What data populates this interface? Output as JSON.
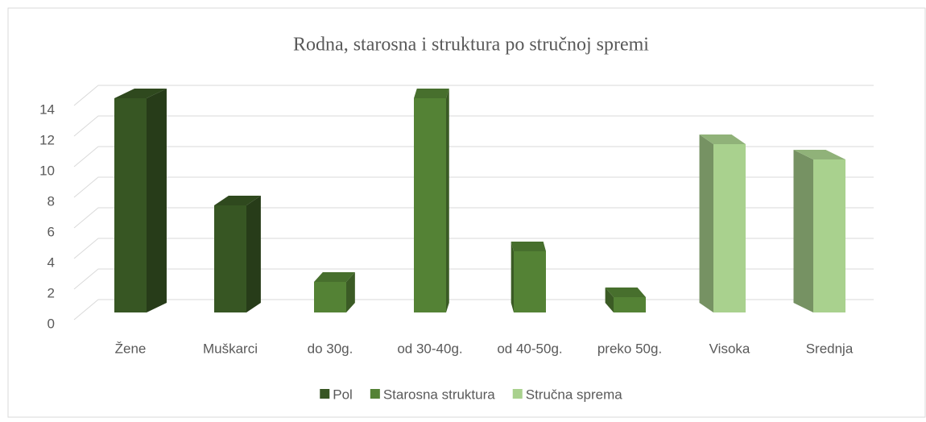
{
  "chart_data": {
    "type": "bar3d",
    "title": "Rodna, starosna i struktura po stručnoj spremi",
    "categories": [
      "Žene",
      "Muškarci",
      "do 30g.",
      "od 30-40g.",
      "od 40-50g.",
      "preko 50g.",
      "Visoka",
      "Srednja"
    ],
    "series": [
      {
        "name": "Pol",
        "color": "#375623",
        "values": [
          14,
          7,
          null,
          null,
          null,
          null,
          null,
          null
        ]
      },
      {
        "name": "Starosna struktura",
        "color": "#548235",
        "values": [
          null,
          null,
          2,
          14,
          4,
          1,
          null,
          null
        ]
      },
      {
        "name": "Stručna sprema",
        "color": "#a9d18e",
        "values": [
          null,
          null,
          null,
          null,
          null,
          null,
          11,
          10
        ]
      }
    ],
    "ylim": [
      0,
      14
    ],
    "yticks": [
      0,
      2,
      4,
      6,
      8,
      10,
      12,
      14
    ],
    "grid": true,
    "legend": "bottom"
  }
}
